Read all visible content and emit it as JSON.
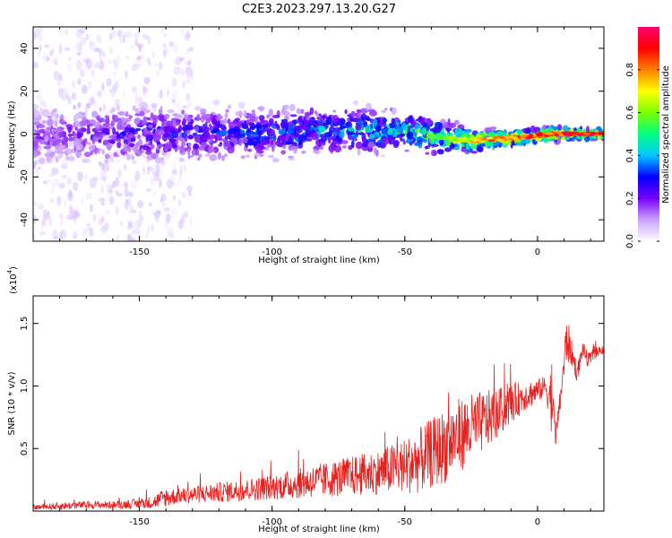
{
  "title": "C2E3.2023.297.13.20.G27",
  "chart_data": [
    {
      "type": "heatmap",
      "xlabel": "Height of straight line (km)",
      "ylabel": "Frequency (Hz)",
      "xlim": [
        -190,
        25
      ],
      "ylim": [
        -50,
        50
      ],
      "xticks": [
        -150,
        -100,
        -50,
        0
      ],
      "yticks": [
        -40,
        -20,
        0,
        20,
        40
      ],
      "colorbar": {
        "label": "Normalized spectral amplitude",
        "ticks": [
          "0.0",
          "0.2",
          "0.4",
          "0.6",
          "0.8"
        ],
        "range": [
          0,
          1
        ],
        "colormap": [
          "#ffffff",
          "#c9a0ff",
          "#7a00ff",
          "#0000ff",
          "#00c8ff",
          "#00ff80",
          "#7dff00",
          "#ffff00",
          "#ff7f00",
          "#ff0000",
          "#ff006e"
        ]
      },
      "ridge": [
        {
          "x": -185,
          "y": -1,
          "amp": 0.2
        },
        {
          "x": -150,
          "y": 0,
          "amp": 0.3
        },
        {
          "x": -110,
          "y": 0,
          "amp": 0.35
        },
        {
          "x": -75,
          "y": 2,
          "amp": 0.45
        },
        {
          "x": -50,
          "y": 1,
          "amp": 0.55
        },
        {
          "x": -35,
          "y": -2,
          "amp": 0.65
        },
        {
          "x": -25,
          "y": -3,
          "amp": 0.8
        },
        {
          "x": -10,
          "y": -2,
          "amp": 0.9
        },
        {
          "x": 5,
          "y": 0,
          "amp": 0.95
        },
        {
          "x": 25,
          "y": 0,
          "amp": 1.0
        }
      ]
    },
    {
      "type": "line",
      "xlabel": "Height of straight line (km)",
      "ylabel": "SNR (10 * v/v)",
      "yscale_label": "(x10",
      "yscale_exp": "4",
      "yscale_close": ")",
      "xlim": [
        -190,
        25
      ],
      "ylim": [
        0,
        1.72
      ],
      "xticks": [
        -150,
        -100,
        -50,
        0
      ],
      "yticks": [
        "0.5",
        "1.0",
        "1.5"
      ],
      "color": "#e8201e",
      "series": [
        {
          "x": [
            -190,
            -180,
            -170,
            -160,
            -150,
            -145,
            -140,
            -135,
            -130,
            -120,
            -110,
            -100,
            -90,
            -80,
            -70,
            -60,
            -50,
            -45,
            -40,
            -35,
            -30,
            -25,
            -20,
            -15,
            -10,
            -5,
            0,
            3,
            5,
            7,
            9,
            11,
            13,
            15,
            17,
            19,
            21,
            23,
            25
          ],
          "y": [
            0.03,
            0.04,
            0.05,
            0.05,
            0.06,
            0.07,
            0.11,
            0.12,
            0.13,
            0.15,
            0.17,
            0.19,
            0.22,
            0.25,
            0.28,
            0.31,
            0.36,
            0.4,
            0.46,
            0.52,
            0.6,
            0.66,
            0.72,
            0.78,
            0.86,
            0.92,
            0.96,
            1.0,
            0.9,
            0.6,
            0.98,
            1.38,
            1.25,
            1.1,
            1.3,
            1.2,
            1.25,
            1.28,
            1.3
          ],
          "noise": [
            0.02,
            0.03,
            0.03,
            0.03,
            0.04,
            0.05,
            0.08,
            0.06,
            0.07,
            0.08,
            0.09,
            0.1,
            0.12,
            0.14,
            0.16,
            0.18,
            0.22,
            0.26,
            0.28,
            0.3,
            0.3,
            0.28,
            0.24,
            0.2,
            0.16,
            0.12,
            0.1,
            0.08,
            0.25,
            0.1,
            0.1,
            0.2,
            0.1,
            0.08,
            0.06,
            0.06,
            0.05,
            0.04,
            0.04
          ]
        }
      ]
    }
  ]
}
